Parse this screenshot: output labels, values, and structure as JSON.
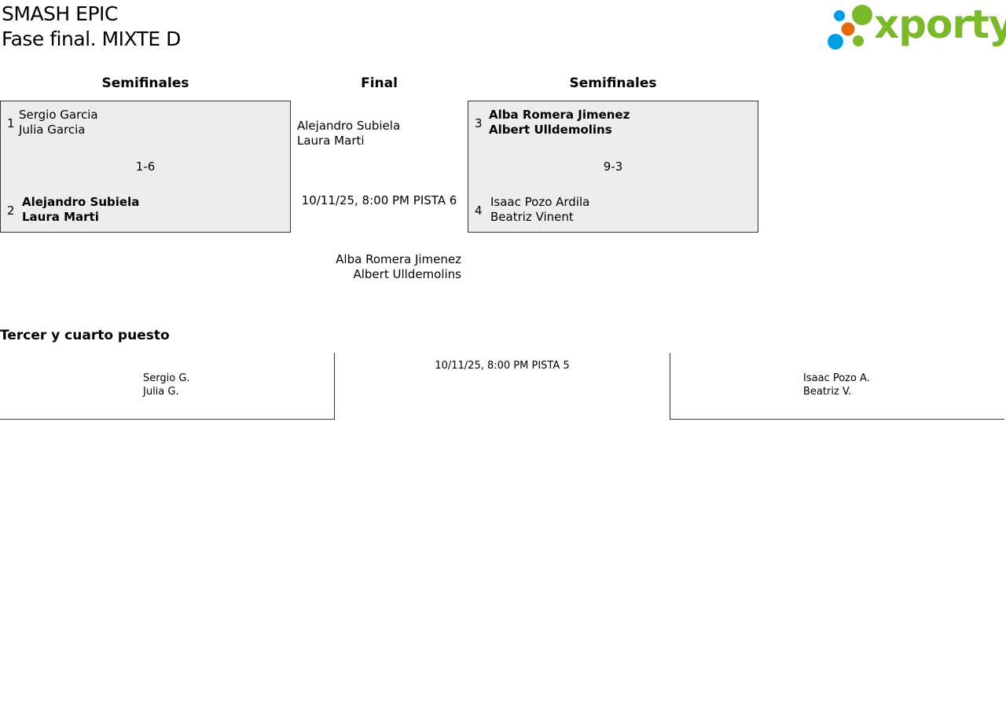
{
  "header": {
    "tournament": "SMASH EPIC",
    "phase": "Fase final. MIXTE D",
    "logo_text": "xporty",
    "logo_colors": {
      "green": "#7ab929",
      "blue": "#009fe3",
      "orange": "#e3690d"
    }
  },
  "columns": {
    "left": "Semifinales",
    "center": "Final",
    "right": "Semifinales"
  },
  "semi1": {
    "team1": {
      "seed": "1",
      "p1": "Sergio Garcia",
      "p2": "Julia Garcia"
    },
    "score": "1-6",
    "team2": {
      "seed": "2",
      "p1": "Alejandro Subiela",
      "p2": "Laura Marti"
    }
  },
  "semi2": {
    "team1": {
      "seed": "3",
      "p1": "Alba Romera Jimenez",
      "p2": "Albert Ulldemolins"
    },
    "score": "9-3",
    "team2": {
      "seed": "4",
      "p1": "Isaac Pozo Ardila",
      "p2": "Beatriz Vinent"
    }
  },
  "final": {
    "team1": {
      "p1": "Alejandro Subiela",
      "p2": "Laura Marti"
    },
    "schedule": "10/11/25, 8:00 PM PISTA 6",
    "team2": {
      "p1": "Alba Romera Jimenez",
      "p2": "Albert Ulldemolins"
    }
  },
  "third": {
    "title": "Tercer y cuarto puesto",
    "team1": {
      "p1": "Sergio G.",
      "p2": "Julia G."
    },
    "schedule": "10/11/25, 8:00 PM PISTA 5",
    "team2": {
      "p1": "Isaac Pozo A.",
      "p2": "Beatriz V."
    }
  }
}
